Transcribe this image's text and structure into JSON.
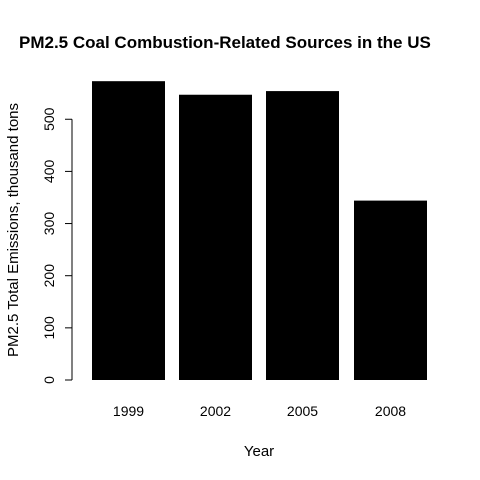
{
  "chart_data": {
    "type": "bar",
    "title": "PM2.5 Coal Combustion-Related Sources in the US",
    "xlabel": "Year",
    "ylabel": "PM2.5 Total Emissions, thousand tons",
    "categories": [
      "1999",
      "2002",
      "2005",
      "2008"
    ],
    "values": [
      573,
      547,
      554,
      344
    ],
    "ylim": [
      0,
      575
    ],
    "yticks": [
      0,
      100,
      200,
      300,
      400,
      500
    ],
    "bar_color": "#000000",
    "grid": false,
    "legend": "none"
  }
}
